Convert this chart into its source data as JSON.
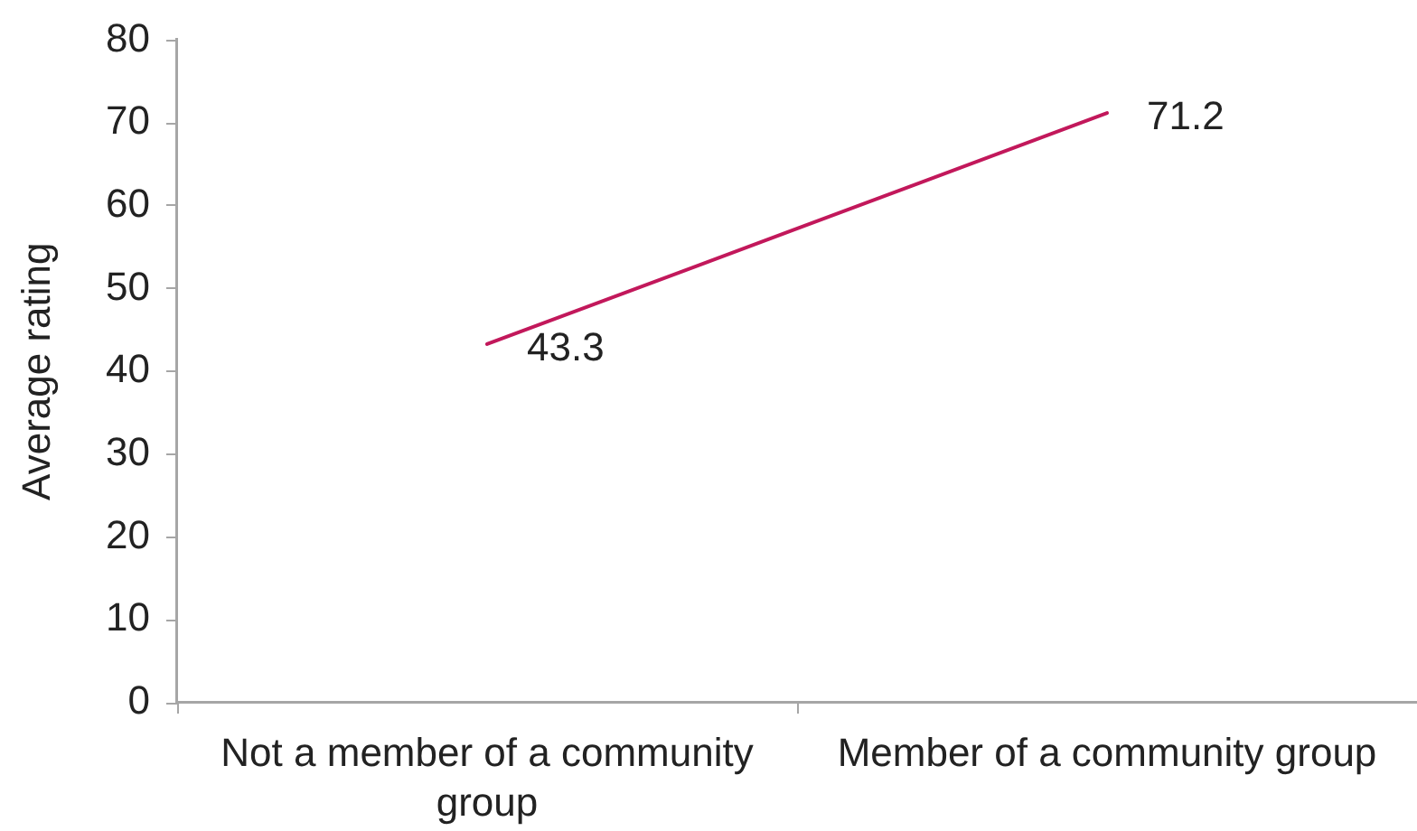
{
  "chart_data": {
    "type": "line",
    "ylabel": "Average rating",
    "categories": [
      "Not a member of a community group",
      "Member of a community group"
    ],
    "series": [
      {
        "color": "#c2185b",
        "values": [
          43.3,
          71.2
        ]
      }
    ],
    "ylim": [
      0,
      80
    ],
    "yticks": [
      0,
      10,
      20,
      30,
      40,
      50,
      60,
      70,
      80
    ],
    "grid": false,
    "legend": false,
    "marker": "none",
    "data_labels": true
  }
}
